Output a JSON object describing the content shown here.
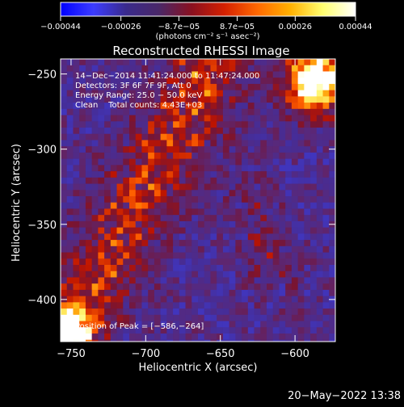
{
  "chart_data": {
    "type": "heatmap",
    "title": "Reconstructed RHESSI Image",
    "xlabel": "Heliocentric X (arcsec)",
    "ylabel": "Heliocentric Y (arcsec)",
    "xlim": [
      -757,
      -573
    ],
    "ylim": [
      -428,
      -240
    ],
    "xticks": [
      {
        "value": -750,
        "label": "−750"
      },
      {
        "value": -700,
        "label": "−700"
      },
      {
        "value": -650,
        "label": "−650"
      },
      {
        "value": -600,
        "label": "−600"
      }
    ],
    "yticks": [
      {
        "value": -250,
        "label": "−250"
      },
      {
        "value": -300,
        "label": "−300"
      },
      {
        "value": -350,
        "label": "−350"
      },
      {
        "value": -400,
        "label": "−400"
      }
    ],
    "colorbar": {
      "range": [
        -0.00044,
        0.00044
      ],
      "ticks": [
        {
          "value": -0.00044,
          "label": "−0.00044"
        },
        {
          "value": -0.00026,
          "label": "−0.00026"
        },
        {
          "value": -8.7e-05,
          "label": "−8.7e−05"
        },
        {
          "value": 8.7e-05,
          "label": "8.7e−05"
        },
        {
          "value": 0.00026,
          "label": "0.00026"
        },
        {
          "value": 0.00044,
          "label": "0.00044"
        }
      ],
      "units": "(photons cm⁻² s⁻¹ asec⁻²)",
      "colors": [
        "#0000ff",
        "#3c3cff",
        "#3a2a8c",
        "#4a2868",
        "#8a1020",
        "#d42000",
        "#ff6800",
        "#ffb000",
        "#ffff70",
        "#ffffff"
      ]
    },
    "annotations": [
      "14−Dec−2014 11:41:24.000 to 11:47:24.000",
      "Detectors: 3F 6F 7F 9F, Att 0",
      "Energy Range: 25.0 − 50.0 keV",
      "Clean    Total counts: 4.43E+03"
    ],
    "peak_label": "Position of Peak = [−586,−264]",
    "peak_position": [
      -586,
      -264
    ],
    "timestamp": "20−May−2022 13:38"
  }
}
